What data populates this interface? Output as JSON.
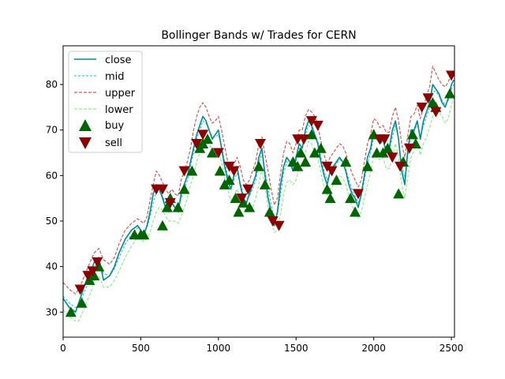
{
  "chart_data": {
    "type": "line",
    "title": "Bollinger Bands w/ Trades for CERN",
    "xlabel": "",
    "ylabel": "",
    "xlim": [
      0,
      2520
    ],
    "ylim": [
      24.5,
      88.5
    ],
    "xticks": [
      0,
      500,
      1000,
      1500,
      2000,
      2500
    ],
    "yticks": [
      30,
      40,
      50,
      60,
      70,
      80
    ],
    "grid": false,
    "legend_position": "upper left",
    "colors": {
      "close": "#008b8b",
      "mid": "#00bfff",
      "upper": "#cd5c5c",
      "lower": "#90ee90",
      "buy": "#006400",
      "sell": "#8b0000"
    },
    "legend": [
      "close",
      "mid",
      "upper",
      "lower",
      "buy",
      "sell"
    ],
    "series": [
      {
        "name": "close",
        "x": [
          0,
          40,
          80,
          100,
          120,
          150,
          180,
          200,
          230,
          260,
          300,
          330,
          360,
          400,
          440,
          480,
          500,
          520,
          540,
          560,
          580,
          600,
          620,
          640,
          660,
          680,
          700,
          720,
          740,
          760,
          780,
          800,
          820,
          840,
          860,
          880,
          900,
          920,
          940,
          960,
          980,
          1000,
          1020,
          1040,
          1060,
          1080,
          1100,
          1120,
          1140,
          1160,
          1180,
          1200,
          1220,
          1240,
          1260,
          1280,
          1300,
          1320,
          1340,
          1360,
          1380,
          1400,
          1420,
          1440,
          1460,
          1480,
          1500,
          1520,
          1540,
          1560,
          1580,
          1600,
          1620,
          1640,
          1660,
          1680,
          1700,
          1720,
          1740,
          1760,
          1780,
          1800,
          1820,
          1840,
          1860,
          1880,
          1900,
          1920,
          1940,
          1960,
          1980,
          2000,
          2020,
          2040,
          2060,
          2080,
          2100,
          2120,
          2140,
          2160,
          2180,
          2200,
          2220,
          2240,
          2260,
          2280,
          2300,
          2320,
          2340,
          2360,
          2380,
          2400,
          2420,
          2440,
          2460,
          2480,
          2500,
          2515
        ],
        "values": [
          33,
          31,
          30,
          32,
          34,
          37,
          39,
          41,
          42,
          37,
          38,
          40,
          43,
          46,
          48,
          49,
          48,
          47,
          49,
          52,
          56,
          58,
          57,
          55,
          53,
          52,
          54,
          53,
          52,
          56,
          58,
          60,
          63,
          66,
          69,
          71,
          73,
          72,
          70,
          68,
          69,
          70,
          66,
          62,
          59,
          57,
          60,
          62,
          58,
          55,
          54,
          56,
          58,
          60,
          64,
          66,
          60,
          55,
          52,
          49,
          52,
          58,
          62,
          64,
          63,
          61,
          64,
          67,
          66,
          70,
          72,
          71,
          69,
          67,
          63,
          60,
          58,
          61,
          62,
          63,
          64,
          63,
          61,
          58,
          56,
          55,
          53,
          56,
          60,
          64,
          66,
          70,
          68,
          67,
          68,
          65,
          66,
          70,
          72,
          68,
          61,
          58,
          66,
          70,
          70,
          72,
          68,
          72,
          74,
          76,
          80,
          79,
          78,
          76,
          75,
          77,
          80,
          81
        ]
      },
      {
        "name": "mid",
        "x": [
          0,
          40,
          80,
          100,
          120,
          150,
          180,
          200,
          230,
          260,
          300,
          330,
          360,
          400,
          440,
          480,
          500,
          520,
          540,
          560,
          580,
          600,
          620,
          640,
          660,
          680,
          700,
          720,
          740,
          760,
          780,
          800,
          820,
          840,
          860,
          880,
          900,
          920,
          940,
          960,
          980,
          1000,
          1020,
          1040,
          1060,
          1080,
          1100,
          1120,
          1140,
          1160,
          1180,
          1200,
          1220,
          1240,
          1260,
          1280,
          1300,
          1320,
          1340,
          1360,
          1380,
          1400,
          1420,
          1440,
          1460,
          1480,
          1500,
          1520,
          1540,
          1560,
          1580,
          1600,
          1620,
          1640,
          1660,
          1680,
          1700,
          1720,
          1740,
          1760,
          1780,
          1800,
          1820,
          1840,
          1860,
          1880,
          1900,
          1920,
          1940,
          1960,
          1980,
          2000,
          2020,
          2040,
          2060,
          2080,
          2100,
          2120,
          2140,
          2160,
          2180,
          2200,
          2220,
          2240,
          2260,
          2280,
          2300,
          2320,
          2340,
          2360,
          2380,
          2400,
          2420,
          2440,
          2460,
          2480,
          2500,
          2515
        ],
        "values": [
          33.5,
          32,
          31,
          31.5,
          33,
          35.5,
          38,
          40,
          41,
          38.5,
          38,
          39.5,
          42,
          45,
          47,
          48.5,
          48,
          47.5,
          48.5,
          51,
          54,
          56.5,
          56.5,
          55.5,
          54,
          53,
          53.5,
          53,
          52.5,
          55,
          57,
          59,
          62,
          65,
          68,
          70,
          72,
          71.5,
          70,
          68.5,
          68.5,
          69,
          66.5,
          63,
          60,
          58,
          59,
          60.5,
          58.5,
          56,
          55,
          55.5,
          57,
          59,
          62.5,
          65,
          61,
          57,
          53.5,
          50.5,
          51.5,
          56,
          60.5,
          63,
          63,
          61.5,
          63,
          66,
          66,
          69,
          71,
          70.5,
          69,
          67.5,
          64,
          61,
          59,
          60.5,
          61.5,
          62.5,
          63.5,
          63,
          61.5,
          59,
          57,
          55.5,
          54,
          55.5,
          59,
          62.5,
          65,
          68.5,
          68,
          67,
          67.5,
          65.5,
          65.5,
          68.5,
          71,
          68,
          62.5,
          59.5,
          64.5,
          68.5,
          69.5,
          71.5,
          68.5,
          71,
          73,
          75,
          78.5,
          78.5,
          77.5,
          76.5,
          75.5,
          76.5,
          79,
          80
        ]
      },
      {
        "name": "upper",
        "x": [
          0,
          40,
          80,
          100,
          120,
          150,
          180,
          200,
          230,
          260,
          300,
          330,
          360,
          400,
          440,
          480,
          500,
          520,
          540,
          560,
          580,
          600,
          620,
          640,
          660,
          680,
          700,
          720,
          740,
          760,
          780,
          800,
          820,
          840,
          860,
          880,
          900,
          920,
          940,
          960,
          980,
          1000,
          1020,
          1040,
          1060,
          1080,
          1100,
          1120,
          1140,
          1160,
          1180,
          1200,
          1220,
          1240,
          1260,
          1280,
          1300,
          1320,
          1340,
          1360,
          1380,
          1400,
          1420,
          1440,
          1460,
          1480,
          1500,
          1520,
          1540,
          1560,
          1580,
          1600,
          1620,
          1640,
          1660,
          1680,
          1700,
          1720,
          1740,
          1760,
          1780,
          1800,
          1820,
          1840,
          1860,
          1880,
          1900,
          1920,
          1940,
          1960,
          1980,
          2000,
          2020,
          2040,
          2060,
          2080,
          2100,
          2120,
          2140,
          2160,
          2180,
          2200,
          2220,
          2240,
          2260,
          2280,
          2300,
          2320,
          2340,
          2360,
          2380,
          2400,
          2420,
          2440,
          2460,
          2480,
          2500,
          2515
        ],
        "values": [
          36.5,
          35,
          34,
          35,
          36.5,
          39,
          41.5,
          43,
          44,
          41.5,
          40.5,
          42,
          45,
          48,
          49.5,
          50.5,
          50,
          49.5,
          51,
          54.5,
          58,
          61,
          60,
          58.5,
          57,
          56,
          57,
          56,
          55.5,
          59,
          61,
          63,
          66,
          70,
          73,
          75,
          76,
          75,
          73,
          71.5,
          72,
          73,
          70,
          66.5,
          63,
          61.5,
          62.5,
          64,
          62,
          59,
          58,
          59,
          61,
          63,
          67,
          68.5,
          64.5,
          61,
          57,
          53.5,
          55,
          60.5,
          65,
          67.5,
          67,
          65,
          67,
          70,
          70,
          73,
          74.5,
          74,
          73,
          71,
          67.5,
          64.5,
          62.5,
          64,
          65,
          66,
          67,
          66.5,
          65,
          62.5,
          60.5,
          59,
          57.5,
          59,
          63,
          67,
          69,
          72.5,
          72,
          70.5,
          71,
          69.5,
          69.5,
          73,
          75,
          72,
          67,
          64,
          69,
          73,
          73.5,
          75.5,
          72.5,
          75,
          77.5,
          79.5,
          84,
          82.5,
          81,
          80,
          79.5,
          80.5,
          82.5,
          83
        ]
      },
      {
        "name": "lower",
        "x": [
          0,
          40,
          80,
          100,
          120,
          150,
          180,
          200,
          230,
          260,
          300,
          330,
          360,
          400,
          440,
          480,
          500,
          520,
          540,
          560,
          580,
          600,
          620,
          640,
          660,
          680,
          700,
          720,
          740,
          760,
          780,
          800,
          820,
          840,
          860,
          880,
          900,
          920,
          940,
          960,
          980,
          1000,
          1020,
          1040,
          1060,
          1080,
          1100,
          1120,
          1140,
          1160,
          1180,
          1200,
          1220,
          1240,
          1260,
          1280,
          1300,
          1320,
          1340,
          1360,
          1380,
          1400,
          1420,
          1440,
          1460,
          1480,
          1500,
          1520,
          1540,
          1560,
          1580,
          1600,
          1620,
          1640,
          1660,
          1680,
          1700,
          1720,
          1740,
          1760,
          1780,
          1800,
          1820,
          1840,
          1860,
          1880,
          1900,
          1920,
          1940,
          1960,
          1980,
          2000,
          2020,
          2040,
          2060,
          2080,
          2100,
          2120,
          2140,
          2160,
          2180,
          2200,
          2220,
          2240,
          2260,
          2280,
          2300,
          2320,
          2340,
          2360,
          2380,
          2400,
          2420,
          2440,
          2460,
          2480,
          2500,
          2515
        ],
        "values": [
          30.5,
          29,
          28,
          28,
          29.5,
          32,
          34.5,
          37,
          38,
          35.5,
          35.5,
          37,
          39,
          42,
          44.5,
          46.5,
          46,
          45.5,
          46,
          47.5,
          50,
          52,
          53,
          52.5,
          51,
          50,
          50,
          50,
          49.5,
          51,
          53,
          55,
          58,
          60,
          63,
          65,
          68,
          68,
          67,
          65.5,
          65,
          65,
          63,
          59.5,
          57,
          54.5,
          55.5,
          57,
          55,
          53,
          52,
          52,
          53,
          55,
          58,
          61.5,
          57.5,
          53,
          50,
          47.5,
          48,
          51.5,
          56,
          58.5,
          59,
          58,
          59,
          62,
          62,
          65,
          67.5,
          67,
          65,
          64,
          60.5,
          57.5,
          55.5,
          57,
          58,
          59,
          60,
          59.5,
          58,
          55.5,
          53.5,
          52,
          50.5,
          52,
          55,
          58,
          61,
          64.5,
          64,
          63.5,
          64,
          61.5,
          61.5,
          64,
          67,
          64,
          58,
          55,
          60,
          64,
          65.5,
          67.5,
          64.5,
          67,
          68.5,
          70.5,
          73,
          74.5,
          74,
          73,
          71.5,
          72.5,
          75.5,
          77
        ]
      }
    ],
    "buy": {
      "x": [
        50,
        120,
        170,
        200,
        230,
        460,
        500,
        520,
        640,
        670,
        690,
        740,
        780,
        830,
        880,
        900,
        930,
        960,
        1010,
        1040,
        1070,
        1110,
        1130,
        1160,
        1200,
        1260,
        1300,
        1330,
        1480,
        1510,
        1530,
        1560,
        1600,
        1620,
        1660,
        1700,
        1720,
        1760,
        1820,
        1850,
        1880,
        1960,
        2000,
        2020,
        2060,
        2090,
        2160,
        2190,
        2250,
        2270,
        2380,
        2400,
        2490
      ],
      "values": [
        30,
        32,
        37,
        38,
        40,
        47,
        47,
        47,
        49,
        53,
        55,
        53,
        57,
        61,
        66,
        67,
        68,
        65,
        61,
        58,
        59,
        55,
        52,
        54,
        53,
        62,
        58,
        52,
        63,
        62,
        65,
        63,
        69,
        65,
        66,
        57,
        55,
        59,
        63,
        55,
        52,
        62,
        69,
        65,
        65,
        66,
        56,
        63,
        69,
        67,
        76,
        75,
        78
      ]
    },
    "sell": {
      "x": [
        110,
        160,
        190,
        220,
        600,
        640,
        690,
        780,
        860,
        900,
        1000,
        1070,
        1100,
        1150,
        1190,
        1270,
        1350,
        1390,
        1510,
        1550,
        1600,
        1640,
        1700,
        1730,
        1900,
        2040,
        2070,
        2120,
        2170,
        2230,
        2310,
        2350,
        2400,
        2500
      ],
      "values": [
        35,
        38,
        39,
        41,
        57,
        57,
        54,
        61,
        67,
        69,
        65,
        62,
        61,
        55,
        57,
        67,
        50,
        49,
        68,
        68,
        72,
        71,
        62,
        61,
        56,
        68,
        68,
        64,
        62,
        66,
        75,
        77,
        74,
        82
      ]
    }
  },
  "legend_labels": {
    "close": "close",
    "mid": "mid",
    "upper": "upper",
    "lower": "lower",
    "buy": "buy",
    "sell": "sell"
  }
}
